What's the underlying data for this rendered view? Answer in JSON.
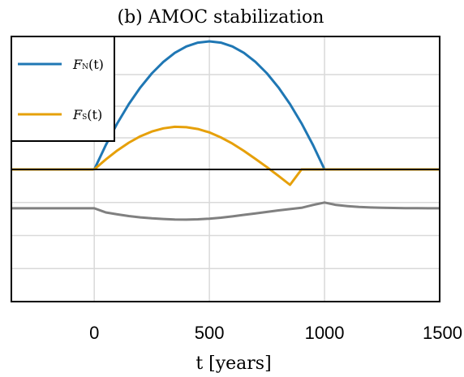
{
  "chart_data": {
    "type": "line",
    "title": "(b) AMOC stabilization",
    "xlabel": "t [years]",
    "xlim": [
      -360,
      1500
    ],
    "xticks": [
      0,
      500,
      1000,
      1500
    ],
    "grid": true,
    "legend_position": "top-left",
    "upper_panel": {
      "ylim": [
        0,
        1.0
      ],
      "series": [
        {
          "name": "F_N(t)",
          "label_main": "F",
          "label_sub": "N",
          "label_arg": "(t)",
          "color": "#1f77b4",
          "x": [
            -360,
            0,
            50,
            100,
            150,
            200,
            250,
            300,
            350,
            400,
            450,
            500,
            550,
            600,
            650,
            700,
            750,
            800,
            850,
            900,
            950,
            1000,
            1500
          ],
          "y": [
            0,
            0,
            0.19,
            0.36,
            0.51,
            0.64,
            0.75,
            0.84,
            0.91,
            0.96,
            0.99,
            1.0,
            0.99,
            0.96,
            0.91,
            0.84,
            0.75,
            0.64,
            0.51,
            0.36,
            0.19,
            0,
            0
          ]
        },
        {
          "name": "F_S(t)",
          "label_main": "F",
          "label_sub": "S",
          "label_arg": "(t)",
          "color": "#e6a00a",
          "x": [
            -360,
            0,
            50,
            100,
            150,
            200,
            250,
            300,
            350,
            400,
            450,
            500,
            550,
            600,
            650,
            700,
            750,
            800,
            850,
            900,
            1500
          ],
          "y": [
            0,
            0,
            0.078,
            0.148,
            0.209,
            0.259,
            0.296,
            0.321,
            0.333,
            0.33,
            0.316,
            0.289,
            0.25,
            0.202,
            0.145,
            0.082,
            0.018,
            -0.05,
            -0.12,
            0,
            0
          ]
        }
      ]
    },
    "lower_panel": {
      "ylim": [
        -0.8,
        0.0
      ],
      "series": [
        {
          "color": "#808080",
          "x": [
            -360,
            0,
            50,
            100,
            150,
            200,
            250,
            300,
            350,
            400,
            450,
            500,
            550,
            600,
            650,
            700,
            750,
            800,
            850,
            900,
            950,
            1000,
            1050,
            1100,
            1150,
            1200,
            1250,
            1300,
            1350,
            1400,
            1450,
            1500
          ],
          "y": [
            -0.235,
            -0.235,
            -0.26,
            -0.272,
            -0.282,
            -0.29,
            -0.296,
            -0.3,
            -0.303,
            -0.304,
            -0.302,
            -0.298,
            -0.292,
            -0.284,
            -0.275,
            -0.266,
            -0.257,
            -0.248,
            -0.24,
            -0.232,
            -0.215,
            -0.2,
            -0.215,
            -0.222,
            -0.227,
            -0.23,
            -0.232,
            -0.233,
            -0.234,
            -0.234,
            -0.235,
            -0.235
          ]
        }
      ]
    }
  }
}
